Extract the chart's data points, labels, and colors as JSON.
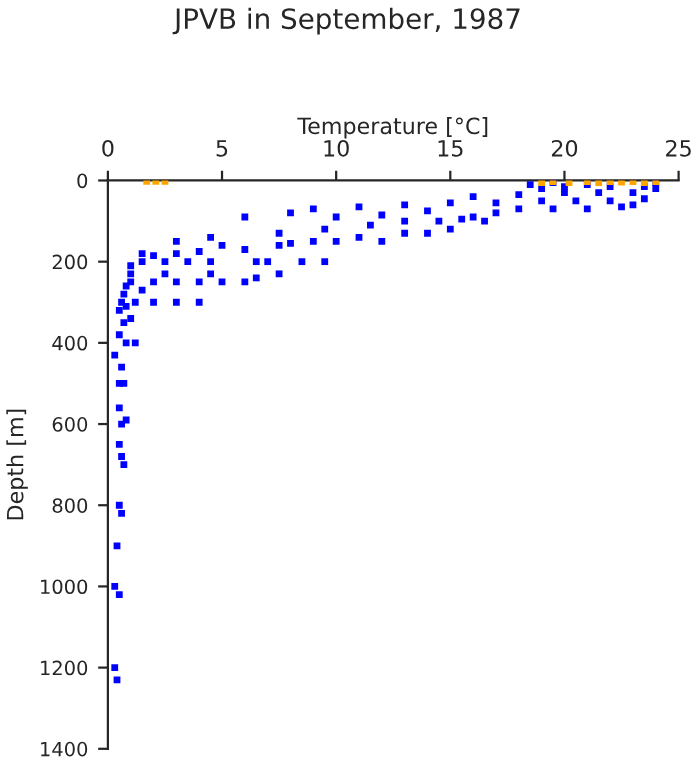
{
  "chart_data": {
    "type": "scatter",
    "title": "JPVB in September, 1987",
    "xlabel": "Temperature [°C]",
    "ylabel": "Depth [m]",
    "xlim": [
      0,
      25
    ],
    "xticks": [
      0,
      5,
      10,
      15,
      20,
      25
    ],
    "ylim": [
      1400,
      0
    ],
    "yticks": [
      0,
      200,
      400,
      600,
      800,
      1000,
      1200,
      1400
    ],
    "marker": "square",
    "series": [
      {
        "color": "#0000ff",
        "x": [
          0.4,
          0.3,
          0.5,
          0.3,
          0.4,
          0.6,
          0.5,
          0.7,
          0.6,
          0.5,
          0.6,
          0.8,
          0.5,
          0.7,
          0.5,
          0.6,
          0.3,
          0.8,
          1.2,
          0.5,
          0.7,
          1.0,
          0.5,
          0.8,
          1.2,
          0.6,
          2.0,
          3.0,
          4.0,
          0.7,
          1.5,
          0.8,
          1.0,
          2.0,
          3.0,
          4.0,
          5.0,
          6.0,
          1.0,
          2.5,
          4.5,
          6.5,
          7.5,
          1.0,
          1.5,
          2.5,
          3.5,
          4.5,
          6.5,
          7.0,
          8.5,
          9.5,
          2.0,
          3.0,
          4.0,
          1.5,
          5.0,
          6.0,
          7.5,
          8.0,
          9.0,
          10.0,
          11,
          12,
          13,
          3.0,
          4.5,
          7.5,
          9.5,
          11.5,
          13,
          14.5,
          15.5,
          16.5,
          15,
          14,
          16,
          17,
          18,
          19.5,
          21,
          22.5,
          23,
          14,
          12,
          10,
          8,
          6,
          9,
          11,
          13,
          15,
          17,
          19,
          20.5,
          22,
          23.5,
          16,
          18,
          20,
          21.5,
          23,
          19,
          20,
          22,
          23.5,
          18.5,
          19.5,
          21,
          24,
          24
        ],
        "values": [
          1230,
          1200,
          1020,
          1000,
          900,
          820,
          800,
          700,
          680,
          650,
          600,
          590,
          560,
          500,
          500,
          460,
          430,
          400,
          400,
          380,
          350,
          340,
          320,
          310,
          300,
          300,
          300,
          300,
          300,
          280,
          270,
          260,
          250,
          250,
          250,
          250,
          250,
          250,
          230,
          230,
          230,
          240,
          230,
          210,
          200,
          200,
          200,
          200,
          200,
          200,
          200,
          200,
          185,
          180,
          175,
          180,
          160,
          170,
          160,
          155,
          150,
          150,
          140,
          150,
          130,
          150,
          140,
          130,
          120,
          110,
          100,
          100,
          95,
          100,
          120,
          130,
          90,
          80,
          70,
          70,
          70,
          65,
          60,
          75,
          85,
          90,
          80,
          90,
          70,
          65,
          60,
          55,
          55,
          50,
          50,
          50,
          45,
          40,
          35,
          30,
          30,
          30,
          20,
          15,
          15,
          15,
          10,
          5,
          10,
          5,
          20
        ]
      },
      {
        "color": "#ffa500",
        "x": [
          1.7,
          2.1,
          2.5,
          19,
          19.5,
          20.2,
          21,
          21.5,
          22,
          22.5,
          23,
          23.5,
          24
        ],
        "values": [
          2,
          2,
          2,
          5,
          3,
          5,
          3,
          5,
          3,
          4,
          3,
          5,
          3
        ]
      }
    ]
  }
}
